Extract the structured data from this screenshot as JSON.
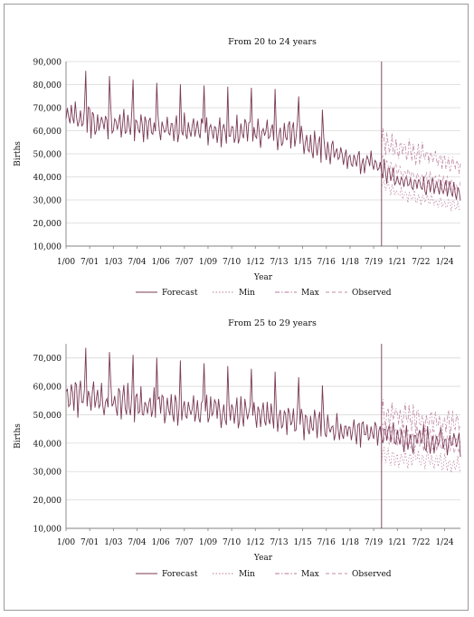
{
  "chart_data": [
    {
      "type": "line",
      "title": "From 20 to 24 years",
      "xlabel": "Year",
      "ylabel": "Births",
      "ylim": [
        10000,
        90000
      ],
      "yticks": [
        "10,000",
        "20,000",
        "30,000",
        "40,000",
        "50,000",
        "60,000",
        "70,000",
        "80,000",
        "90,000"
      ],
      "xticks": [
        "1/00",
        "7/01",
        "1/03",
        "7/04",
        "1/06",
        "7/07",
        "1/09",
        "7/10",
        "1/12",
        "7/13",
        "1/15",
        "7/16",
        "1/18",
        "7/19",
        "1/21",
        "7/22",
        "1/24"
      ],
      "grid": true,
      "legend_position": "bottom",
      "series": [
        {
          "name": "Forecast",
          "color": "#7a3a55",
          "dash": "solid",
          "anchors": [
            [
              0,
              67000
            ],
            [
              24,
              64000
            ],
            [
              72,
              61000
            ],
            [
              120,
              60000
            ],
            [
              168,
              59000
            ],
            [
              192,
              53000
            ],
            [
              216,
              48000
            ],
            [
              234,
              46000
            ],
            [
              252,
              38000
            ],
            [
              300,
              34000
            ]
          ]
        },
        {
          "name": "Min",
          "color": "#b87a98",
          "dash": "dot",
          "anchors": [
            [
              240,
              38000
            ],
            [
              252,
              33000
            ],
            [
              276,
              30000
            ],
            [
              300,
              27000
            ]
          ]
        },
        {
          "name": "Max",
          "color": "#b87a98",
          "dash": "dashdot",
          "anchors": [
            [
              240,
              56000
            ],
            [
              252,
              52000
            ],
            [
              276,
              49000
            ],
            [
              300,
              44000
            ]
          ]
        },
        {
          "name": "Observed",
          "color": "#c48aa8",
          "dash": "dash",
          "anchors": [
            [
              240,
              46000
            ],
            [
              252,
              42000
            ],
            [
              276,
              39000
            ],
            [
              300,
              35000
            ]
          ]
        }
      ]
    },
    {
      "type": "line",
      "title": "From 25 to 29 years",
      "xlabel": "Year",
      "ylabel": "Births",
      "ylim": [
        10000,
        75000
      ],
      "yticks": [
        "10,000",
        "20,000",
        "30,000",
        "40,000",
        "50,000",
        "60,000",
        "70,000"
      ],
      "xticks": [
        "1/00",
        "7/01",
        "1/03",
        "7/04",
        "1/06",
        "7/07",
        "1/09",
        "7/10",
        "1/12",
        "7/13",
        "1/15",
        "7/16",
        "1/18",
        "7/19",
        "1/21",
        "7/22",
        "1/24"
      ],
      "grid": true,
      "legend_position": "bottom",
      "series": [
        {
          "name": "Forecast",
          "color": "#7a3a55",
          "dash": "solid",
          "anchors": [
            [
              0,
              57000
            ],
            [
              24,
              55000
            ],
            [
              72,
              53000
            ],
            [
              120,
              51000
            ],
            [
              168,
              49000
            ],
            [
              192,
              46000
            ],
            [
              216,
              44000
            ],
            [
              234,
              44000
            ],
            [
              252,
              42000
            ],
            [
              300,
              40000
            ]
          ]
        },
        {
          "name": "Min",
          "color": "#b87a98",
          "dash": "dot",
          "anchors": [
            [
              240,
              36000
            ],
            [
              252,
              35000
            ],
            [
              276,
              34000
            ],
            [
              300,
              32000
            ]
          ]
        },
        {
          "name": "Max",
          "color": "#b87a98",
          "dash": "dashdot",
          "anchors": [
            [
              240,
              51000
            ],
            [
              252,
              50000
            ],
            [
              276,
              48000
            ],
            [
              300,
              46000
            ]
          ]
        },
        {
          "name": "Observed",
          "color": "#c48aa8",
          "dash": "dash",
          "anchors": [
            [
              240,
              44000
            ],
            [
              252,
              43000
            ],
            [
              276,
              41000
            ],
            [
              300,
              39000
            ]
          ]
        }
      ]
    }
  ]
}
